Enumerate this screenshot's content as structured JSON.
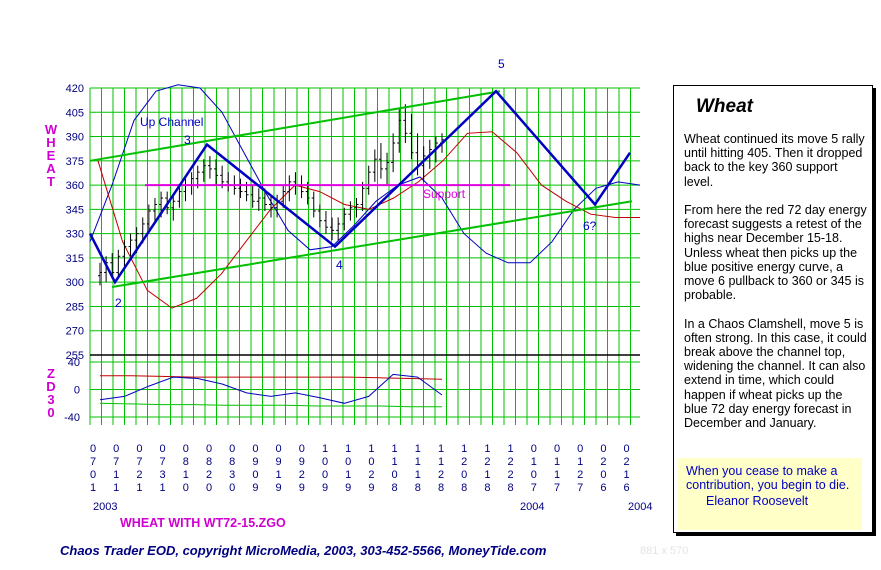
{
  "chart_data": {
    "type": "bar",
    "title": "Wheat",
    "subtitle": "WHEAT WITH WT72-15.ZGO",
    "ylabel": "WHEAT",
    "ylim": [
      255,
      420
    ],
    "yticks": [
      420,
      405,
      390,
      375,
      360,
      345,
      330,
      315,
      300,
      285,
      270,
      255
    ],
    "indicator": {
      "label": "ZD30",
      "ylim": [
        -40,
        40
      ],
      "yticks": [
        40,
        0,
        -40
      ]
    },
    "xdate_labels": [
      [
        "0",
        "7",
        "0",
        "1"
      ],
      [
        "0",
        "7",
        "1",
        "1"
      ],
      [
        "0",
        "7",
        "2",
        "1"
      ],
      [
        "0",
        "7",
        "3",
        "1"
      ],
      [
        "0",
        "8",
        "1",
        "0"
      ],
      [
        "0",
        "8",
        "2",
        "0"
      ],
      [
        "0",
        "8",
        "3",
        "0"
      ],
      [
        "0",
        "9",
        "0",
        "9"
      ],
      [
        "0",
        "9",
        "1",
        "9"
      ],
      [
        "0",
        "9",
        "2",
        "9"
      ],
      [
        "1",
        "0",
        "0",
        "9"
      ],
      [
        "1",
        "0",
        "1",
        "9"
      ],
      [
        "1",
        "0",
        "2",
        "9"
      ],
      [
        "1",
        "1",
        "0",
        "8"
      ],
      [
        "1",
        "1",
        "1",
        "8"
      ],
      [
        "1",
        "1",
        "2",
        "8"
      ],
      [
        "1",
        "2",
        "0",
        "8"
      ],
      [
        "1",
        "2",
        "1",
        "8"
      ],
      [
        "1",
        "2",
        "2",
        "8"
      ],
      [
        "0",
        "1",
        "0",
        "7"
      ],
      [
        "0",
        "1",
        "1",
        "7"
      ],
      [
        "0",
        "1",
        "2",
        "7"
      ],
      [
        "0",
        "2",
        "0",
        "6"
      ],
      [
        "0",
        "2",
        "1",
        "6"
      ]
    ],
    "year_labels": [
      "2003",
      "2004",
      "2004"
    ],
    "annotations": {
      "up_channel": "Up Channel",
      "support": "Support",
      "wave_labels": [
        "2",
        "3",
        "4",
        "5",
        "6?"
      ]
    },
    "price_bars": [
      {
        "o": 304,
        "h": 312,
        "l": 298,
        "c": 306
      },
      {
        "o": 306,
        "h": 316,
        "l": 300,
        "c": 312
      },
      {
        "o": 312,
        "h": 318,
        "l": 302,
        "c": 306
      },
      {
        "o": 306,
        "h": 320,
        "l": 304,
        "c": 316
      },
      {
        "o": 316,
        "h": 326,
        "l": 310,
        "c": 322
      },
      {
        "o": 322,
        "h": 330,
        "l": 316,
        "c": 326
      },
      {
        "o": 326,
        "h": 334,
        "l": 318,
        "c": 330
      },
      {
        "o": 330,
        "h": 340,
        "l": 324,
        "c": 336
      },
      {
        "o": 336,
        "h": 348,
        "l": 332,
        "c": 344
      },
      {
        "o": 344,
        "h": 352,
        "l": 336,
        "c": 348
      },
      {
        "o": 348,
        "h": 356,
        "l": 340,
        "c": 352
      },
      {
        "o": 352,
        "h": 356,
        "l": 342,
        "c": 346
      },
      {
        "o": 346,
        "h": 354,
        "l": 338,
        "c": 350
      },
      {
        "o": 350,
        "h": 360,
        "l": 346,
        "c": 356
      },
      {
        "o": 356,
        "h": 364,
        "l": 350,
        "c": 360
      },
      {
        "o": 360,
        "h": 368,
        "l": 354,
        "c": 364
      },
      {
        "o": 364,
        "h": 372,
        "l": 358,
        "c": 368
      },
      {
        "o": 368,
        "h": 376,
        "l": 362,
        "c": 372
      },
      {
        "o": 372,
        "h": 378,
        "l": 364,
        "c": 370
      },
      {
        "o": 370,
        "h": 376,
        "l": 360,
        "c": 366
      },
      {
        "o": 366,
        "h": 372,
        "l": 358,
        "c": 362
      },
      {
        "o": 362,
        "h": 368,
        "l": 356,
        "c": 360
      },
      {
        "o": 360,
        "h": 366,
        "l": 354,
        "c": 358
      },
      {
        "o": 358,
        "h": 364,
        "l": 352,
        "c": 356
      },
      {
        "o": 356,
        "h": 362,
        "l": 350,
        "c": 354
      },
      {
        "o": 354,
        "h": 360,
        "l": 346,
        "c": 350
      },
      {
        "o": 350,
        "h": 358,
        "l": 344,
        "c": 352
      },
      {
        "o": 352,
        "h": 358,
        "l": 344,
        "c": 348
      },
      {
        "o": 348,
        "h": 354,
        "l": 340,
        "c": 346
      },
      {
        "o": 346,
        "h": 354,
        "l": 340,
        "c": 350
      },
      {
        "o": 350,
        "h": 360,
        "l": 346,
        "c": 356
      },
      {
        "o": 356,
        "h": 366,
        "l": 350,
        "c": 362
      },
      {
        "o": 362,
        "h": 368,
        "l": 354,
        "c": 360
      },
      {
        "o": 360,
        "h": 366,
        "l": 352,
        "c": 356
      },
      {
        "o": 356,
        "h": 362,
        "l": 348,
        "c": 352
      },
      {
        "o": 352,
        "h": 356,
        "l": 340,
        "c": 344
      },
      {
        "o": 344,
        "h": 348,
        "l": 334,
        "c": 338
      },
      {
        "o": 338,
        "h": 344,
        "l": 330,
        "c": 334
      },
      {
        "o": 334,
        "h": 340,
        "l": 326,
        "c": 332
      },
      {
        "o": 332,
        "h": 340,
        "l": 326,
        "c": 336
      },
      {
        "o": 336,
        "h": 346,
        "l": 332,
        "c": 342
      },
      {
        "o": 342,
        "h": 350,
        "l": 338,
        "c": 346
      },
      {
        "o": 346,
        "h": 352,
        "l": 340,
        "c": 348
      },
      {
        "o": 348,
        "h": 362,
        "l": 344,
        "c": 358
      },
      {
        "o": 358,
        "h": 372,
        "l": 354,
        "c": 368
      },
      {
        "o": 368,
        "h": 382,
        "l": 362,
        "c": 376
      },
      {
        "o": 376,
        "h": 386,
        "l": 364,
        "c": 370
      },
      {
        "o": 370,
        "h": 380,
        "l": 360,
        "c": 374
      },
      {
        "o": 374,
        "h": 392,
        "l": 368,
        "c": 386
      },
      {
        "o": 386,
        "h": 408,
        "l": 380,
        "c": 400
      },
      {
        "o": 400,
        "h": 410,
        "l": 386,
        "c": 392
      },
      {
        "o": 392,
        "h": 404,
        "l": 376,
        "c": 380
      },
      {
        "o": 380,
        "h": 392,
        "l": 366,
        "c": 372
      },
      {
        "o": 372,
        "h": 384,
        "l": 362,
        "c": 378
      },
      {
        "o": 378,
        "h": 388,
        "l": 370,
        "c": 382
      },
      {
        "o": 382,
        "h": 390,
        "l": 374,
        "c": 386
      },
      {
        "o": 386,
        "h": 392,
        "l": 380,
        "c": 388
      }
    ],
    "blue_energy": [
      325,
      360,
      400,
      418,
      422,
      420,
      405,
      380,
      355,
      332,
      320,
      322,
      335,
      350,
      360,
      365,
      352,
      330,
      318,
      312,
      312,
      325,
      345,
      358,
      362,
      360
    ],
    "red_energy": [
      375,
      325,
      295,
      284,
      290,
      305,
      325,
      345,
      360,
      356,
      348,
      345,
      352,
      362,
      375,
      392,
      393,
      380,
      360,
      350,
      342,
      340,
      340
    ],
    "zd_red": [
      20,
      20,
      19,
      18,
      18,
      18,
      18,
      18,
      18,
      17,
      16,
      15
    ],
    "zd_blue": [
      -15,
      -10,
      5,
      18,
      16,
      8,
      -5,
      -10,
      -5,
      -12,
      -20,
      -10,
      22,
      18,
      -8
    ],
    "zd_green": [
      -20,
      -21,
      -22,
      -22,
      -23,
      -23,
      -23,
      -24,
      -24,
      -24,
      -25,
      -25
    ]
  },
  "sidebar": {
    "title": "Wheat",
    "text": "Wheat continued its move 5 rally until hitting 405. Then it dropped back to the key 360 support level.\n\nFrom here the red 72 day energy forecast suggests a retest of the highs near December 15-18. Unless wheat then picks up the blue positive energy curve, a move 6 pullback to 360 or 345 is probable.\n\nIn a Chaos Clamshell, move 5 is often strong. In this case, it could break above the channel top, widening the channel. It can also extend in time, which could happen if wheat picks up the blue 72 day energy forecast in December and January.",
    "quote": "When you cease to make a contribution, you begin to die.",
    "quote_author": "Eleanor Roosevelt"
  },
  "footer": "Chaos Trader EOD, copyright MicroMedia, 2003, 303-452-5566, MoneyTide.com",
  "dimensions_label": "881 x 570",
  "colors": {
    "grid": "#00c000",
    "channel": "#00c000",
    "wave": "#0000c0",
    "support": "#e000e0",
    "blue_energy": "#0000c0",
    "red_energy": "#c00000",
    "axis_label": "#d000d0"
  }
}
